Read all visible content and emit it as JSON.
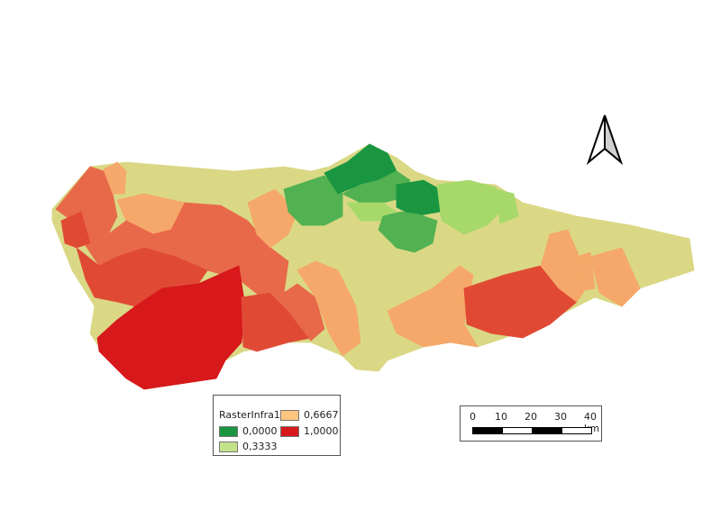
{
  "legend": {
    "title": "RasterInfra1",
    "items": [
      {
        "label": "0,0000",
        "color": "#1a9641"
      },
      {
        "label": "0,3333",
        "color": "#a6d96a"
      },
      {
        "label": "0,6667",
        "color": "#fdc47e"
      },
      {
        "label": "1,0000",
        "color": "#d7191c"
      }
    ]
  },
  "scale_bar": {
    "labels": [
      "0",
      "10",
      "20",
      "30",
      "40 km"
    ]
  },
  "palette": {
    "dark_green": "#1a9641",
    "green": "#52b151",
    "light_green": "#a6d96a",
    "yellow": "#dad885",
    "light_orange": "#f5a869",
    "orange_red": "#e8694a",
    "red": "#e04a35",
    "dark_red": "#d7191c"
  },
  "north_arrow": {
    "icon": "north-arrow-icon"
  }
}
